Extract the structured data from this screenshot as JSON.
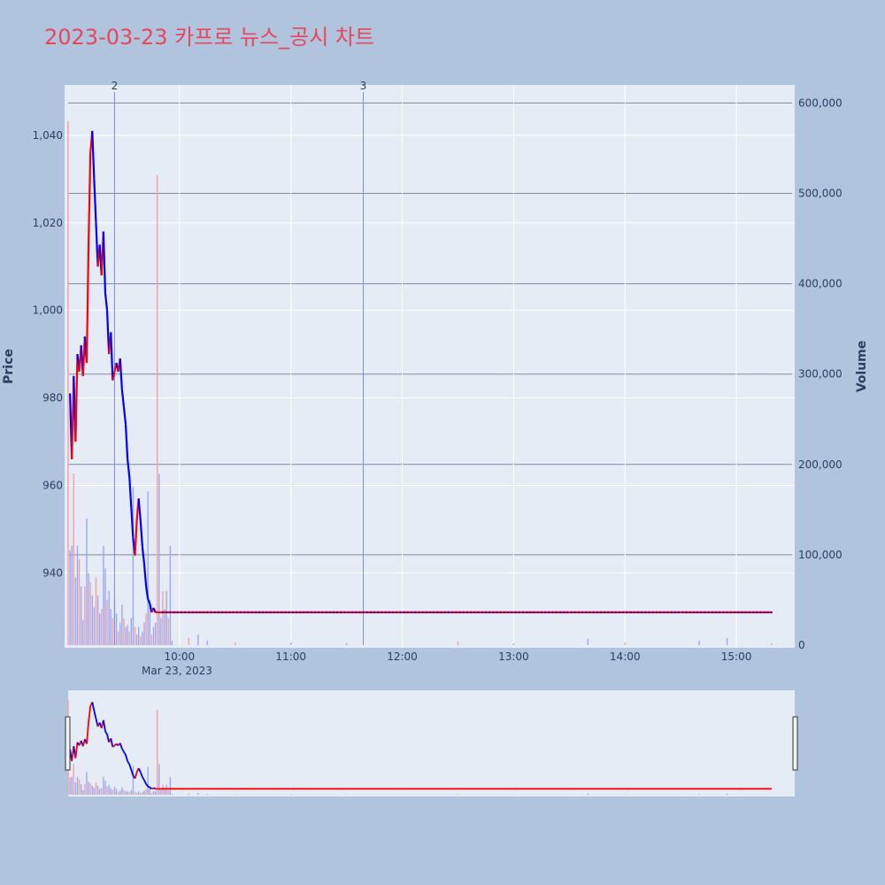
{
  "chart_data": {
    "type": "candlestick",
    "title": "2023-03-23 카프로 뉴스_공시 차트",
    "ylabel": "Price",
    "y2label": "Volume",
    "date_label": "Mar 23, 2023",
    "ylim": [
      923.5,
      1051.5
    ],
    "y2lim": [
      0,
      620000
    ],
    "xlim": [
      "09:00",
      "15:30"
    ],
    "y_ticks": [
      940,
      960,
      980,
      1000,
      1020,
      1040
    ],
    "y_tick_labels": [
      "940",
      "960",
      "980",
      "1,000",
      "1,020",
      "1,040"
    ],
    "y2_ticks": [
      0,
      100000,
      200000,
      300000,
      400000,
      500000,
      600000
    ],
    "y2_tick_labels": [
      "0",
      "100,000",
      "200,000",
      "300,000",
      "400,000",
      "500,000",
      "600,000"
    ],
    "x_ticks": [
      "10:00",
      "11:00",
      "12:00",
      "13:00",
      "14:00",
      "15:00"
    ],
    "events": [
      {
        "time": "09:25",
        "label": "2"
      },
      {
        "time": "11:39",
        "label": "3"
      }
    ],
    "up_color": "#ff0000",
    "down_color": "#0000ff",
    "volume_up_color": "#f4a0a0",
    "volume_down_color": "#9ea8f0",
    "series": [
      {
        "name": "price",
        "points": [
          [
            "09:01",
            981
          ],
          [
            "09:02",
            966
          ],
          [
            "09:03",
            985
          ],
          [
            "09:04",
            970
          ],
          [
            "09:05",
            990
          ],
          [
            "09:06",
            986
          ],
          [
            "09:07",
            992
          ],
          [
            "09:08",
            985
          ],
          [
            "09:09",
            994
          ],
          [
            "09:10",
            988
          ],
          [
            "09:11",
            1015
          ],
          [
            "09:12",
            1036
          ],
          [
            "09:13",
            1041
          ],
          [
            "09:14",
            1030
          ],
          [
            "09:15",
            1020
          ],
          [
            "09:16",
            1010
          ],
          [
            "09:17",
            1015
          ],
          [
            "09:18",
            1008
          ],
          [
            "09:19",
            1018
          ],
          [
            "09:20",
            1004
          ],
          [
            "09:21",
            1000
          ],
          [
            "09:22",
            990
          ],
          [
            "09:23",
            995
          ],
          [
            "09:24",
            984
          ],
          [
            "09:25",
            986
          ],
          [
            "09:26",
            988
          ],
          [
            "09:27",
            986
          ],
          [
            "09:28",
            989
          ],
          [
            "09:29",
            982
          ],
          [
            "09:30",
            978
          ],
          [
            "09:31",
            974
          ],
          [
            "09:32",
            966
          ],
          [
            "09:33",
            962
          ],
          [
            "09:34",
            955
          ],
          [
            "09:35",
            948
          ],
          [
            "09:36",
            944
          ],
          [
            "09:37",
            952
          ],
          [
            "09:38",
            957
          ],
          [
            "09:39",
            952
          ],
          [
            "09:40",
            946
          ],
          [
            "09:41",
            942
          ],
          [
            "09:42",
            937
          ],
          [
            "09:43",
            934
          ],
          [
            "09:44",
            933
          ],
          [
            "09:45",
            931
          ],
          [
            "09:46",
            932
          ],
          [
            "09:47",
            931
          ],
          [
            "09:48",
            931
          ],
          [
            "09:49",
            931
          ],
          [
            "09:50",
            931
          ],
          [
            "10:00",
            931
          ],
          [
            "10:30",
            931
          ],
          [
            "11:00",
            931
          ],
          [
            "11:30",
            931
          ],
          [
            "12:00",
            931
          ],
          [
            "12:30",
            931
          ],
          [
            "13:00",
            931
          ],
          [
            "13:30",
            931
          ],
          [
            "14:00",
            931
          ],
          [
            "14:30",
            931
          ],
          [
            "15:00",
            931
          ],
          [
            "15:19",
            931
          ]
        ]
      },
      {
        "name": "volume",
        "points": [
          [
            "09:00",
            580000
          ],
          [
            "09:01",
            105000
          ],
          [
            "09:02",
            110000
          ],
          [
            "09:03",
            190000
          ],
          [
            "09:04",
            75000
          ],
          [
            "09:05",
            110000
          ],
          [
            "09:06",
            95000
          ],
          [
            "09:07",
            65000
          ],
          [
            "09:08",
            28000
          ],
          [
            "09:09",
            65000
          ],
          [
            "09:10",
            140000
          ],
          [
            "09:11",
            80000
          ],
          [
            "09:12",
            70000
          ],
          [
            "09:13",
            55000
          ],
          [
            "09:14",
            42000
          ],
          [
            "09:15",
            75000
          ],
          [
            "09:16",
            55000
          ],
          [
            "09:17",
            35000
          ],
          [
            "09:18",
            40000
          ],
          [
            "09:19",
            110000
          ],
          [
            "09:20",
            85000
          ],
          [
            "09:21",
            50000
          ],
          [
            "09:22",
            60000
          ],
          [
            "09:23",
            40000
          ],
          [
            "09:24",
            30000
          ],
          [
            "09:25",
            50000
          ],
          [
            "09:26",
            35000
          ],
          [
            "09:27",
            15000
          ],
          [
            "09:28",
            25000
          ],
          [
            "09:29",
            45000
          ],
          [
            "09:30",
            30000
          ],
          [
            "09:31",
            20000
          ],
          [
            "09:32",
            22000
          ],
          [
            "09:33",
            15000
          ],
          [
            "09:34",
            30000
          ],
          [
            "09:35",
            175000
          ],
          [
            "09:36",
            20000
          ],
          [
            "09:37",
            12000
          ],
          [
            "09:38",
            20000
          ],
          [
            "09:39",
            10000
          ],
          [
            "09:40",
            15000
          ],
          [
            "09:41",
            25000
          ],
          [
            "09:42",
            35000
          ],
          [
            "09:43",
            170000
          ],
          [
            "09:44",
            50000
          ],
          [
            "09:45",
            12000
          ],
          [
            "09:46",
            20000
          ],
          [
            "09:47",
            25000
          ],
          [
            "09:48",
            520000
          ],
          [
            "09:49",
            190000
          ],
          [
            "09:50",
            30000
          ],
          [
            "09:51",
            60000
          ],
          [
            "09:52",
            40000
          ],
          [
            "09:53",
            60000
          ],
          [
            "09:54",
            30000
          ],
          [
            "09:55",
            110000
          ],
          [
            "09:56",
            5000
          ],
          [
            "10:05",
            8000
          ],
          [
            "10:10",
            12000
          ],
          [
            "10:15",
            5000
          ],
          [
            "10:30",
            3000
          ],
          [
            "11:00",
            3000
          ],
          [
            "11:30",
            2000
          ],
          [
            "12:30",
            4000
          ],
          [
            "13:00",
            2000
          ],
          [
            "13:40",
            7000
          ],
          [
            "14:00",
            3000
          ],
          [
            "14:40",
            5000
          ],
          [
            "14:55",
            8000
          ],
          [
            "15:19",
            2000
          ]
        ]
      }
    ]
  }
}
